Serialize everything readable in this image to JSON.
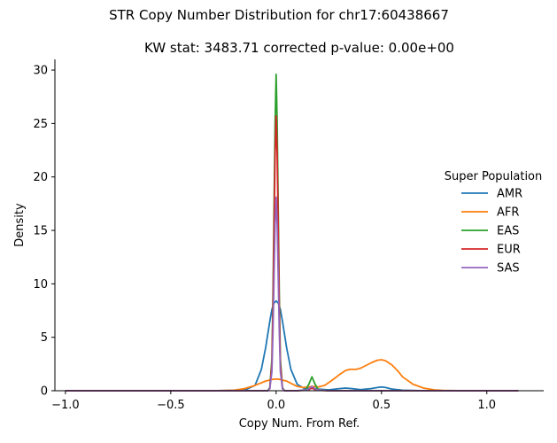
{
  "chart_data": {
    "type": "line",
    "title": "STR Copy Number Distribution for chr17:60438667",
    "subtitle": "KW stat: 3483.71    corrected p-value: 0.00e+00",
    "xlabel": "Copy Num. From Ref.",
    "ylabel": "Density",
    "xlim": [
      -1.05,
      1.27
    ],
    "ylim": [
      0,
      31
    ],
    "xticks": [
      "−1.0",
      "−0.5",
      "0.0",
      "0.5",
      "1.0"
    ],
    "xtick_values": [
      -1.0,
      -0.5,
      0.0,
      0.5,
      1.0
    ],
    "yticks": [
      "0",
      "5",
      "10",
      "15",
      "20",
      "25",
      "30"
    ],
    "ytick_values": [
      0,
      5,
      10,
      15,
      20,
      25,
      30
    ],
    "grid": false,
    "legend": {
      "title": "Super Population",
      "placement": "right"
    },
    "series": [
      {
        "name": "AMR",
        "color": "#1f77b4",
        "x": [
          -1.0,
          -0.3,
          -0.15,
          -0.1,
          -0.07,
          -0.05,
          -0.03,
          -0.02,
          -0.01,
          0.0,
          0.01,
          0.02,
          0.03,
          0.05,
          0.07,
          0.1,
          0.13,
          0.15,
          0.17,
          0.2,
          0.25,
          0.3,
          0.33,
          0.36,
          0.4,
          0.45,
          0.48,
          0.5,
          0.52,
          0.55,
          0.6,
          0.7,
          1.15
        ],
        "y": [
          0,
          0,
          0.05,
          0.5,
          2.0,
          4.0,
          6.5,
          7.6,
          8.2,
          8.4,
          8.2,
          7.6,
          6.5,
          4.0,
          2.0,
          0.6,
          0.25,
          0.2,
          0.25,
          0.15,
          0.08,
          0.2,
          0.25,
          0.2,
          0.1,
          0.2,
          0.3,
          0.35,
          0.3,
          0.15,
          0.05,
          0,
          0
        ]
      },
      {
        "name": "AFR",
        "color": "#ff7f0e",
        "x": [
          -1.0,
          -0.3,
          -0.2,
          -0.15,
          -0.1,
          -0.05,
          -0.02,
          0.0,
          0.02,
          0.05,
          0.08,
          0.1,
          0.13,
          0.15,
          0.17,
          0.2,
          0.23,
          0.26,
          0.3,
          0.33,
          0.35,
          0.38,
          0.4,
          0.42,
          0.45,
          0.48,
          0.5,
          0.52,
          0.55,
          0.58,
          0.6,
          0.65,
          0.7,
          0.75,
          0.8,
          0.9,
          1.15
        ],
        "y": [
          0,
          0,
          0.05,
          0.2,
          0.5,
          0.9,
          1.05,
          1.1,
          1.05,
          0.9,
          0.6,
          0.4,
          0.3,
          0.35,
          0.4,
          0.35,
          0.5,
          0.9,
          1.5,
          1.9,
          2.0,
          2.0,
          2.1,
          2.3,
          2.6,
          2.85,
          2.9,
          2.8,
          2.4,
          1.8,
          1.3,
          0.6,
          0.25,
          0.08,
          0.02,
          0,
          0
        ]
      },
      {
        "name": "EAS",
        "color": "#2ca02c",
        "x": [
          -1.0,
          -0.1,
          -0.04,
          -0.03,
          -0.02,
          -0.015,
          -0.01,
          -0.005,
          0.0,
          0.005,
          0.01,
          0.015,
          0.02,
          0.03,
          0.04,
          0.05,
          0.1,
          0.14,
          0.155,
          0.17,
          0.185,
          0.2,
          0.25,
          1.15
        ],
        "y": [
          0,
          0,
          0,
          0.3,
          3.0,
          9.0,
          17.0,
          25.0,
          29.6,
          25.0,
          17.0,
          9.0,
          3.0,
          0.3,
          0,
          0,
          0,
          0.1,
          0.6,
          1.3,
          0.6,
          0.1,
          0,
          0
        ]
      },
      {
        "name": "EUR",
        "color": "#d62728",
        "x": [
          -1.0,
          -0.1,
          -0.04,
          -0.03,
          -0.02,
          -0.015,
          -0.01,
          -0.005,
          0.0,
          0.005,
          0.01,
          0.015,
          0.02,
          0.03,
          0.04,
          0.1,
          0.15,
          0.17,
          0.19,
          0.25,
          1.15
        ],
        "y": [
          0,
          0,
          0,
          0.2,
          2.5,
          7.5,
          15.0,
          22.0,
          25.7,
          22.0,
          15.0,
          7.5,
          2.5,
          0.2,
          0,
          0,
          0.05,
          0.25,
          0.05,
          0,
          0
        ]
      },
      {
        "name": "SAS",
        "color": "#9467bd",
        "x": [
          -1.0,
          -0.1,
          -0.04,
          -0.03,
          -0.02,
          -0.015,
          -0.01,
          -0.005,
          0.0,
          0.005,
          0.01,
          0.015,
          0.02,
          0.03,
          0.04,
          0.1,
          0.15,
          0.17,
          0.19,
          0.25,
          1.15
        ],
        "y": [
          0,
          0,
          0,
          0.2,
          1.8,
          5.5,
          10.5,
          15.5,
          18.1,
          15.5,
          10.5,
          5.5,
          1.8,
          0.2,
          0,
          0,
          0.1,
          0.4,
          0.1,
          0,
          0
        ]
      }
    ]
  }
}
